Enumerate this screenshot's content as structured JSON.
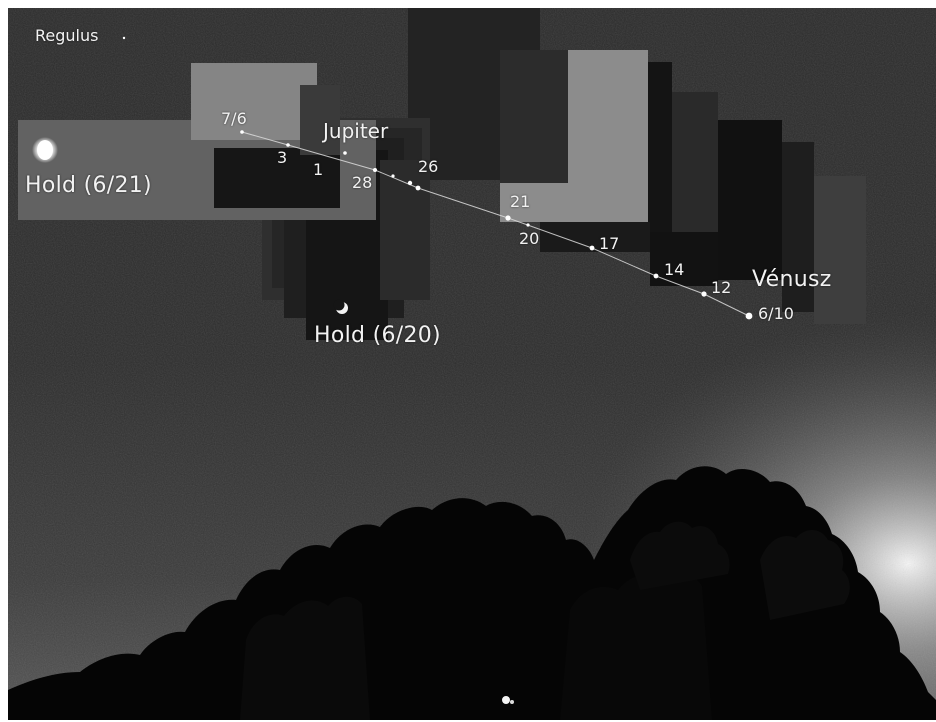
{
  "photo": {
    "objects": {
      "regulus": "Regulus",
      "jupiter": "Jupiter",
      "venus": "Vénusz",
      "moon_6_21": "Hold (6/21)",
      "moon_6_20": "Hold (6/20)"
    },
    "dates": {
      "d7_6": "7/6",
      "d3": "3",
      "d1": "1",
      "d28": "28",
      "d26": "26",
      "d21": "21",
      "d20": "20",
      "d17": "17",
      "d14": "14",
      "d12": "12",
      "d6_10": "6/10"
    }
  }
}
